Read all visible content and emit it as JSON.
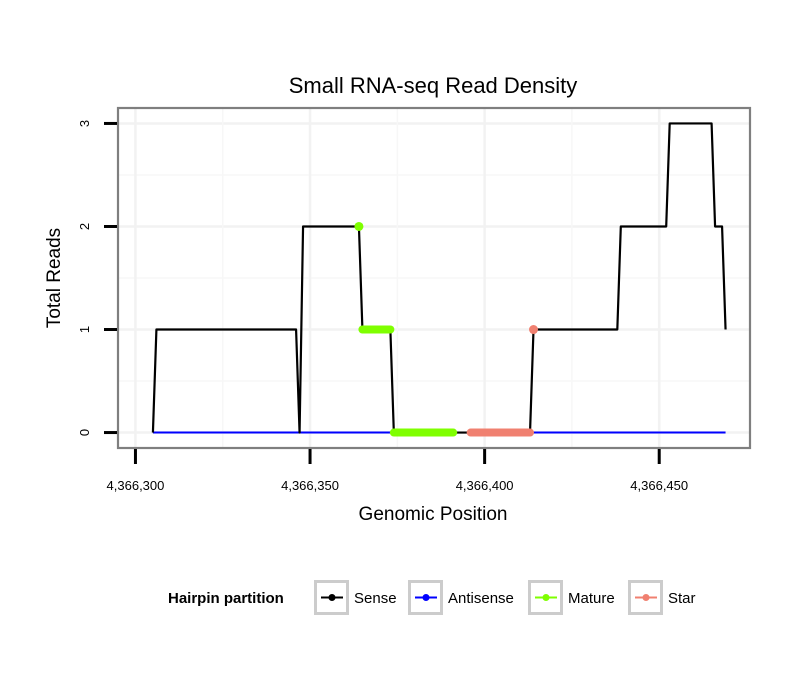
{
  "chart_data": {
    "type": "line",
    "title": "Small RNA-seq Read Density",
    "xlabel": "Genomic Position",
    "ylabel": "Total Reads",
    "xlim": [
      4366295,
      4366476
    ],
    "ylim": [
      -0.15,
      3.15
    ],
    "x_ticks": [
      4366300,
      4366350,
      4366400,
      4366450
    ],
    "x_tick_labels": [
      "4,366,300",
      "4,366,350",
      "4,366,400",
      "4,366,450"
    ],
    "y_ticks": [
      0,
      1,
      2,
      3
    ],
    "y_tick_labels": [
      "0",
      "1",
      "2",
      "3"
    ],
    "grid": true,
    "legend": {
      "title": "Hairpin partition",
      "position": "bottom",
      "entries": [
        {
          "label": "Sense",
          "color": "#000000"
        },
        {
          "label": "Antisense",
          "color": "#0000ff"
        },
        {
          "label": "Mature",
          "color": "#7fff00"
        },
        {
          "label": "Star",
          "color": "#f08070"
        }
      ]
    },
    "series": [
      {
        "name": "Sense",
        "color": "#000000",
        "points": [
          [
            4366305,
            0
          ],
          [
            4366306,
            1
          ],
          [
            4366346,
            1
          ],
          [
            4366347,
            0
          ],
          [
            4366348,
            2
          ],
          [
            4366364,
            2
          ],
          [
            4366365,
            1
          ],
          [
            4366373,
            1
          ],
          [
            4366374,
            0
          ],
          [
            4366413,
            0
          ],
          [
            4366414,
            1
          ],
          [
            4366438,
            1
          ],
          [
            4366439,
            2
          ],
          [
            4366452,
            2
          ],
          [
            4366453,
            3
          ],
          [
            4366465,
            3
          ],
          [
            4366466,
            2
          ],
          [
            4366468,
            2
          ],
          [
            4366469,
            1
          ]
        ]
      },
      {
        "name": "Antisense",
        "color": "#0000ff",
        "points": [
          [
            4366305,
            0
          ],
          [
            4366469,
            0
          ]
        ]
      },
      {
        "name": "Mature",
        "color": "#7fff00",
        "points": [
          [
            4366364,
            2
          ],
          [
            4366365,
            1
          ],
          [
            4366373,
            1
          ],
          [
            4366374,
            0
          ],
          [
            4366391,
            0
          ]
        ],
        "segments": [
          {
            "x": [
              4366364,
              4366364
            ],
            "y": 2
          },
          {
            "x": [
              4366365,
              4366373
            ],
            "y": 1
          },
          {
            "x": [
              4366374,
              4366391
            ],
            "y": 0
          }
        ]
      },
      {
        "name": "Star",
        "color": "#f08070",
        "points": [
          [
            4366396,
            0
          ],
          [
            4366413,
            0
          ],
          [
            4366414,
            1
          ]
        ],
        "segments": [
          {
            "x": [
              4366396,
              4366413
            ],
            "y": 0
          },
          {
            "x": [
              4366414,
              4366414
            ],
            "y": 1
          }
        ]
      }
    ]
  }
}
